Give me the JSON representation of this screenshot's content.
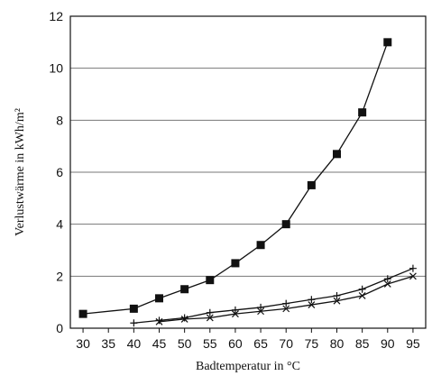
{
  "chart_data": {
    "type": "line",
    "xlabel": "Badtemperatur in °C",
    "ylabel": "Verlustwärme in kWh/m²",
    "xlim": [
      27.5,
      97.5
    ],
    "xticks": [
      30,
      35,
      40,
      45,
      50,
      55,
      60,
      65,
      70,
      75,
      80,
      85,
      90,
      95
    ],
    "ylim": [
      0,
      12
    ],
    "yticks": [
      0,
      2,
      4,
      6,
      8,
      10,
      12
    ],
    "grid": true,
    "series": [
      {
        "color": "#111111",
        "marker": "square",
        "x": [
          30,
          40,
          45,
          50,
          55,
          60,
          65,
          70,
          75,
          80,
          85,
          90
        ],
        "values": [
          0.55,
          0.75,
          1.15,
          1.5,
          1.85,
          2.5,
          3.2,
          4.0,
          5.5,
          6.7,
          8.3,
          11.0
        ]
      },
      {
        "color": "#111111",
        "marker": "plus",
        "x": [
          40,
          45,
          50,
          55,
          60,
          65,
          70,
          75,
          80,
          85,
          90,
          95
        ],
        "values": [
          0.2,
          0.3,
          0.4,
          0.6,
          0.7,
          0.8,
          0.95,
          1.1,
          1.25,
          1.5,
          1.9,
          2.3
        ]
      },
      {
        "color": "#111111",
        "marker": "cross",
        "x": [
          45,
          50,
          55,
          60,
          65,
          70,
          75,
          80,
          85,
          90,
          95
        ],
        "values": [
          0.25,
          0.35,
          0.4,
          0.55,
          0.65,
          0.75,
          0.9,
          1.05,
          1.25,
          1.7,
          2.0
        ]
      }
    ]
  }
}
